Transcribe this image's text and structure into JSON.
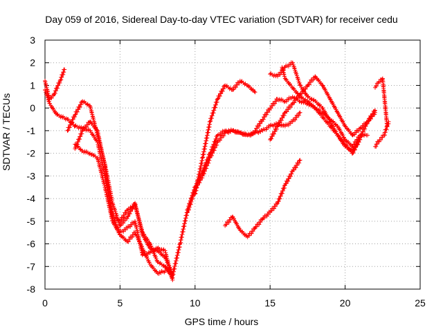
{
  "chart_data": {
    "type": "scatter",
    "title": "Day 059 of 2016, Sidereal Day-to-day VTEC variation (SDTVAR) for receiver cedu",
    "xlabel": "GPS time / hours",
    "ylabel": "SDTVAR / TECUs",
    "xlim": [
      0,
      25
    ],
    "ylim": [
      -8,
      3
    ],
    "xticks": [
      "0",
      "5",
      "10",
      "15",
      "20",
      "25"
    ],
    "yticks": [
      "3",
      "2",
      "1",
      "0",
      "-1",
      "-2",
      "-3",
      "-4",
      "-5",
      "-6",
      "-7",
      "-8"
    ],
    "grid": true,
    "marker": "plus",
    "color": "#ff0000",
    "series": [
      {
        "x": [
          0.0,
          0.3,
          0.6,
          1.0,
          1.3
        ],
        "y": [
          1.2,
          0.4,
          0.6,
          1.2,
          1.7
        ]
      },
      {
        "x": [
          0.0,
          0.3,
          0.8,
          1.5,
          2.0,
          2.5,
          3.0,
          3.5,
          4.0,
          4.5,
          5.0,
          5.5,
          6.0,
          6.5,
          7.0,
          7.5,
          8.0,
          8.5
        ],
        "y": [
          0.8,
          0.2,
          -0.3,
          -0.5,
          -0.8,
          -0.9,
          -1.0,
          -1.5,
          -3.0,
          -4.8,
          -5.5,
          -5.3,
          -5.0,
          -6.5,
          -6.4,
          -6.2,
          -6.3,
          -7.6
        ]
      },
      {
        "x": [
          1.5,
          2.0,
          2.5,
          3.0,
          3.5,
          4.0,
          4.5,
          5.0,
          5.5,
          6.0,
          6.5,
          7.0,
          7.5,
          8.0,
          8.5
        ],
        "y": [
          -1.0,
          -0.3,
          0.3,
          0.1,
          -1.2,
          -2.5,
          -4.2,
          -5.2,
          -4.8,
          -4.2,
          -5.6,
          -6.2,
          -6.3,
          -6.6,
          -7.3
        ]
      },
      {
        "x": [
          2.0,
          2.5,
          3.0,
          3.5,
          4.0,
          4.5,
          5.0,
          5.5,
          6.0,
          6.5,
          7.0,
          7.5,
          8.0,
          8.5
        ],
        "y": [
          -1.8,
          -1.0,
          -0.6,
          -1.0,
          -2.6,
          -4.8,
          -5.0,
          -4.5,
          -4.3,
          -5.5,
          -6.0,
          -6.8,
          -7.0,
          -7.5
        ]
      },
      {
        "x": [
          2.0,
          2.5,
          3.0,
          3.5,
          4.0,
          4.5,
          5.0,
          5.5,
          6.0,
          6.5,
          7.0,
          7.5,
          8.0
        ],
        "y": [
          -1.6,
          -1.9,
          -2.0,
          -2.2,
          -3.5,
          -5.0,
          -5.6,
          -5.9,
          -5.5,
          -6.2,
          -6.9,
          -7.3,
          -7.2
        ]
      },
      {
        "x": [
          8.0,
          8.5,
          9.0,
          9.5,
          10.0,
          10.5,
          11.0,
          11.5,
          12.0,
          12.5,
          13.0,
          13.5,
          14.0
        ],
        "y": [
          -7.0,
          -7.4,
          -6.0,
          -4.5,
          -3.5,
          -2.8,
          -2.0,
          -1.2,
          -1.0,
          -1.0,
          -1.1,
          -1.2,
          -1.1
        ]
      },
      {
        "x": [
          9.5,
          10.0,
          10.5,
          11.0,
          11.5,
          12.0,
          12.5,
          13.0,
          13.5,
          14.0,
          14.5,
          15.0,
          15.5,
          16.0,
          16.5,
          17.0
        ],
        "y": [
          -4.6,
          -3.6,
          -3.0,
          -2.2,
          -1.5,
          -1.1,
          -1.0,
          -1.1,
          -1.2,
          -1.1,
          -1.0,
          -0.8,
          -0.7,
          -0.8,
          -0.6,
          -0.2
        ]
      },
      {
        "x": [
          10.0,
          10.5,
          11.0,
          11.5,
          12.0,
          12.5,
          13.0,
          13.5,
          14.0
        ],
        "y": [
          -3.8,
          -2.2,
          -0.6,
          0.4,
          1.0,
          0.8,
          1.2,
          1.0,
          0.7
        ]
      },
      {
        "x": [
          12.0,
          12.5,
          13.0,
          13.5,
          14.0,
          14.5,
          15.0,
          15.5,
          16.0,
          16.5,
          17.0
        ],
        "y": [
          -5.2,
          -4.8,
          -5.4,
          -5.7,
          -5.3,
          -4.9,
          -4.6,
          -4.2,
          -3.4,
          -2.8,
          -2.3
        ]
      },
      {
        "x": [
          14.0,
          14.5,
          15.0,
          15.5,
          16.0,
          16.5,
          17.0,
          17.5,
          18.0,
          18.5,
          19.0,
          19.5,
          20.0,
          20.5,
          21.0,
          21.5
        ],
        "y": [
          -1.0,
          -0.5,
          0.0,
          0.4,
          0.3,
          0.5,
          0.3,
          0.2,
          0.0,
          -0.2,
          -0.5,
          -0.8,
          -1.4,
          -1.7,
          -1.2,
          -1.2
        ]
      },
      {
        "x": [
          15.0,
          15.5,
          16.0,
          16.5,
          17.0,
          17.5,
          18.0,
          18.5,
          19.0,
          19.5,
          20.0,
          20.5,
          21.0,
          21.5,
          22.0
        ],
        "y": [
          -1.4,
          -0.8,
          -0.2,
          0.2,
          0.6,
          1.0,
          1.4,
          1.0,
          0.4,
          -0.2,
          -0.8,
          -1.2,
          -0.9,
          -0.6,
          -0.1
        ]
      },
      {
        "x": [
          15.0,
          15.5,
          16.0,
          16.5,
          17.0,
          17.5,
          18.0,
          18.5,
          19.0,
          19.5,
          20.0,
          20.5,
          21.0
        ],
        "y": [
          1.5,
          1.4,
          1.8,
          2.0,
          1.0,
          0.5,
          0.3,
          0.0,
          -0.6,
          -1.2,
          -1.7,
          -1.9,
          -1.4
        ]
      },
      {
        "x": [
          15.8,
          16.0,
          16.5,
          17.0,
          17.5,
          18.0,
          18.5,
          19.0,
          19.5,
          20.0,
          20.5,
          21.0,
          21.5,
          22.0
        ],
        "y": [
          1.8,
          1.3,
          0.9,
          0.5,
          0.3,
          0.0,
          -0.4,
          -0.8,
          -1.2,
          -1.6,
          -2.0,
          -1.3,
          -0.6,
          -0.2
        ]
      },
      {
        "x": [
          22.0,
          22.2,
          22.5,
          22.8
        ],
        "y": [
          0.9,
          1.1,
          1.3,
          -0.8
        ]
      },
      {
        "x": [
          22.0,
          22.3,
          22.6,
          22.9
        ],
        "y": [
          -1.7,
          -1.4,
          -1.2,
          -0.6
        ]
      }
    ]
  }
}
